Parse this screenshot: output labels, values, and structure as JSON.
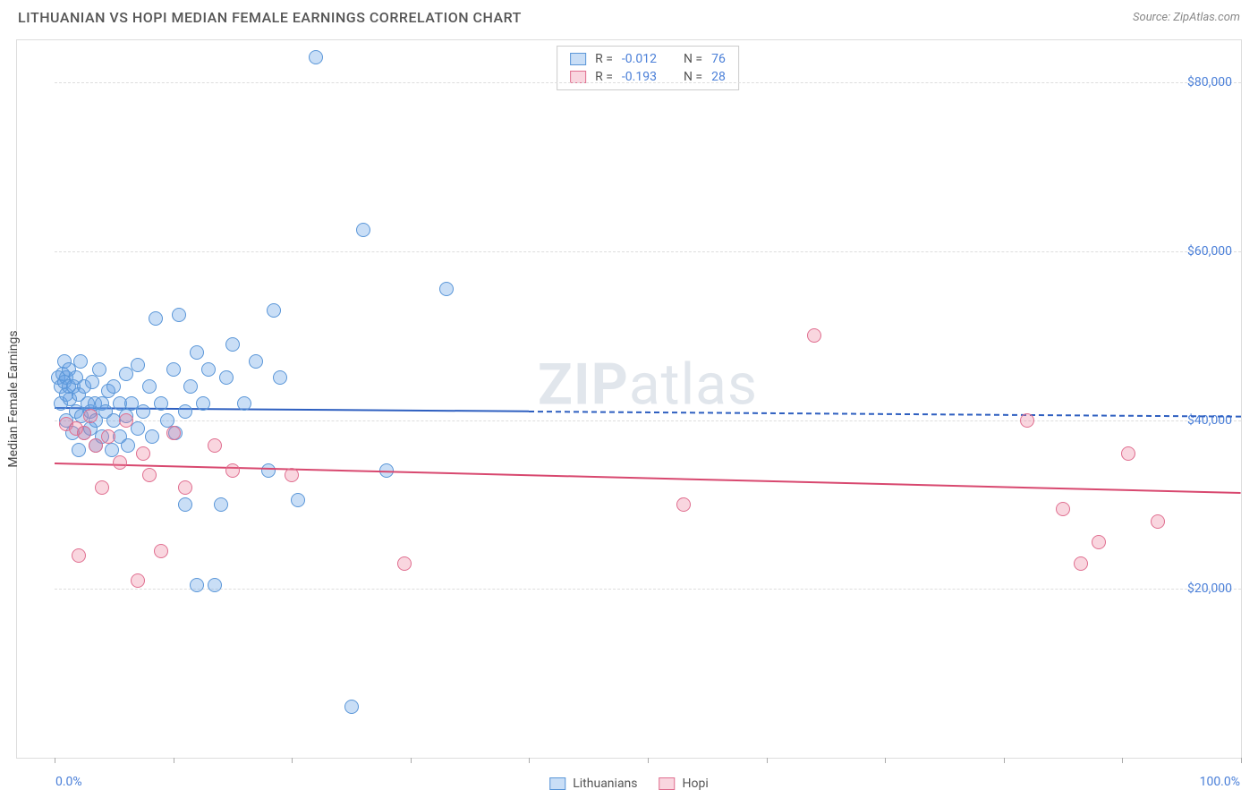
{
  "title": "LITHUANIAN VS HOPI MEDIAN FEMALE EARNINGS CORRELATION CHART",
  "source": "Source: ZipAtlas.com",
  "watermark_bold": "ZIP",
  "watermark_rest": "atlas",
  "ylabel": "Median Female Earnings",
  "x_axis": {
    "min": 0,
    "max": 100,
    "left_label": "0.0%",
    "right_label": "100.0%",
    "ticks_pct": [
      0,
      10,
      20,
      30,
      40,
      50,
      60,
      70,
      80,
      90,
      100
    ]
  },
  "y_axis": {
    "min": 0,
    "max": 85000,
    "gridlines": [
      20000,
      40000,
      60000,
      80000
    ],
    "labels": [
      "$20,000",
      "$40,000",
      "$60,000",
      "$80,000"
    ]
  },
  "colors": {
    "blue_fill": "rgba(100,160,230,0.35)",
    "blue_stroke": "#5a96d8",
    "pink_fill": "rgba(235,120,150,0.30)",
    "pink_stroke": "#e06f90",
    "trend_blue": "#2e5fc0",
    "trend_pink": "#d8486f",
    "tick_label": "#4a7fd8",
    "grid": "#dddddd"
  },
  "marker_radius": 8,
  "series": [
    {
      "name": "Lithuanians",
      "legend_label": "Lithuanians",
      "color_fill": "rgba(100,160,230,0.35)",
      "color_stroke": "#5a96d8",
      "R_label": "R =",
      "R": "-0.012",
      "N_label": "N =",
      "N": "76",
      "trend": {
        "y_at_xmin": 41500,
        "y_at_xmax": 40500,
        "solid_until_pct": 40
      },
      "points": [
        [
          0.3,
          45000
        ],
        [
          0.5,
          44000
        ],
        [
          0.5,
          42000
        ],
        [
          0.7,
          45500
        ],
        [
          0.8,
          44500
        ],
        [
          0.8,
          47000
        ],
        [
          1.0,
          43000
        ],
        [
          1.0,
          45000
        ],
        [
          1.0,
          40000
        ],
        [
          1.2,
          46000
        ],
        [
          1.2,
          44000
        ],
        [
          1.3,
          42500
        ],
        [
          1.5,
          38500
        ],
        [
          1.6,
          44000
        ],
        [
          1.8,
          45000
        ],
        [
          1.8,
          41000
        ],
        [
          2.0,
          36500
        ],
        [
          2.0,
          43000
        ],
        [
          2.2,
          47000
        ],
        [
          2.3,
          40500
        ],
        [
          2.5,
          44000
        ],
        [
          2.5,
          38500
        ],
        [
          2.8,
          42000
        ],
        [
          3.0,
          41000
        ],
        [
          3.0,
          39000
        ],
        [
          3.2,
          44500
        ],
        [
          3.4,
          42000
        ],
        [
          3.5,
          40000
        ],
        [
          3.5,
          37000
        ],
        [
          3.8,
          46000
        ],
        [
          4.0,
          42000
        ],
        [
          4.0,
          38000
        ],
        [
          4.3,
          41000
        ],
        [
          4.5,
          43500
        ],
        [
          4.8,
          36500
        ],
        [
          5.0,
          44000
        ],
        [
          5.0,
          40000
        ],
        [
          5.5,
          42000
        ],
        [
          5.5,
          38000
        ],
        [
          6.0,
          45500
        ],
        [
          6.0,
          40500
        ],
        [
          6.2,
          37000
        ],
        [
          6.5,
          42000
        ],
        [
          7.0,
          46500
        ],
        [
          7.0,
          39000
        ],
        [
          7.5,
          41000
        ],
        [
          8.0,
          44000
        ],
        [
          8.2,
          38000
        ],
        [
          8.5,
          52000
        ],
        [
          9.0,
          42000
        ],
        [
          9.5,
          40000
        ],
        [
          10.0,
          46000
        ],
        [
          10.2,
          38500
        ],
        [
          10.5,
          52500
        ],
        [
          11.0,
          41000
        ],
        [
          11.0,
          30000
        ],
        [
          11.5,
          44000
        ],
        [
          12.0,
          48000
        ],
        [
          12.0,
          20500
        ],
        [
          12.5,
          42000
        ],
        [
          13.0,
          46000
        ],
        [
          13.5,
          20500
        ],
        [
          14.0,
          30000
        ],
        [
          14.5,
          45000
        ],
        [
          15.0,
          49000
        ],
        [
          16.0,
          42000
        ],
        [
          17.0,
          47000
        ],
        [
          18.0,
          34000
        ],
        [
          18.5,
          53000
        ],
        [
          19.0,
          45000
        ],
        [
          20.5,
          30500
        ],
        [
          22.0,
          83000
        ],
        [
          25.0,
          6000
        ],
        [
          26.0,
          62500
        ],
        [
          28.0,
          34000
        ],
        [
          33.0,
          55500
        ]
      ]
    },
    {
      "name": "Hopi",
      "legend_label": "Hopi",
      "color_fill": "rgba(235,120,150,0.30)",
      "color_stroke": "#e06f90",
      "R_label": "R =",
      "R": "-0.193",
      "N_label": "N =",
      "N": "28",
      "trend": {
        "y_at_xmin": 35000,
        "y_at_xmax": 31500,
        "solid_until_pct": 100
      },
      "points": [
        [
          1.0,
          39500
        ],
        [
          1.8,
          39000
        ],
        [
          2.0,
          24000
        ],
        [
          2.5,
          38500
        ],
        [
          3.0,
          40500
        ],
        [
          3.5,
          37000
        ],
        [
          4.0,
          32000
        ],
        [
          4.5,
          38000
        ],
        [
          5.5,
          35000
        ],
        [
          6.0,
          40000
        ],
        [
          7.0,
          21000
        ],
        [
          7.5,
          36000
        ],
        [
          8.0,
          33500
        ],
        [
          9.0,
          24500
        ],
        [
          10.0,
          38500
        ],
        [
          11.0,
          32000
        ],
        [
          13.5,
          37000
        ],
        [
          15.0,
          34000
        ],
        [
          20.0,
          33500
        ],
        [
          29.5,
          23000
        ],
        [
          53.0,
          30000
        ],
        [
          64.0,
          50000
        ],
        [
          82.0,
          40000
        ],
        [
          85.0,
          29500
        ],
        [
          86.5,
          23000
        ],
        [
          88.0,
          25500
        ],
        [
          90.5,
          36000
        ],
        [
          93.0,
          28000
        ]
      ]
    }
  ]
}
